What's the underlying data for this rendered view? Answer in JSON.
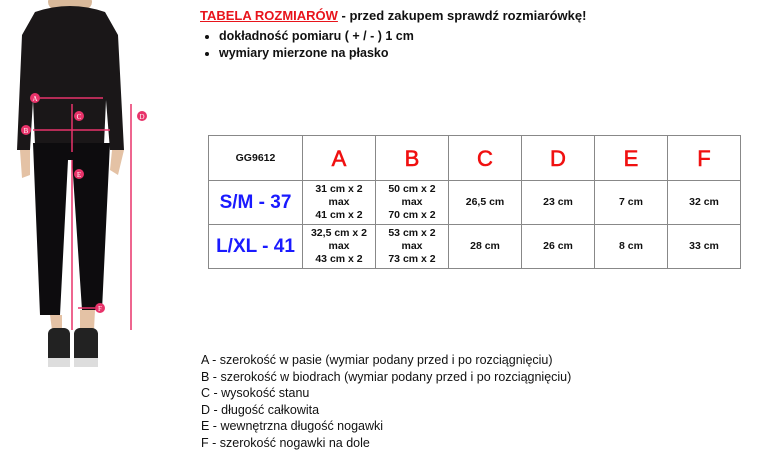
{
  "header": {
    "title": "TABELA ROZMIARÓW",
    "subtitle": " - przed zakupem sprawdź rozmiarówkę!"
  },
  "notes": [
    "dokładność pomiaru ( + / - ) 1 cm",
    "wymiary mierzone na płasko"
  ],
  "table": {
    "headers": [
      "GG9612",
      "A",
      "B",
      "C",
      "D",
      "E",
      "F"
    ],
    "rows": [
      {
        "size": "S/M - 37",
        "a": [
          "31 cm x 2",
          "max",
          "41 cm x 2"
        ],
        "b": [
          "50 cm x 2",
          "max",
          "70 cm x 2"
        ],
        "c": "26,5 cm",
        "d": "23 cm",
        "e": "7 cm",
        "f": "32 cm"
      },
      {
        "size": "L/XL - 41",
        "a": [
          "32,5 cm x 2",
          "max",
          "43 cm x 2"
        ],
        "b": [
          "53 cm x 2",
          "max",
          "73 cm x 2"
        ],
        "c": "28 cm",
        "d": "26 cm",
        "e": "8 cm",
        "f": "33 cm"
      }
    ]
  },
  "legend": [
    "A - szerokość w pasie (wymiar podany przed i po rozciągnięciu)",
    "B - szerokość w biodrach (wymiar podany przed i po rozciągnięciu)",
    "C - wysokość stanu",
    "D - długość całkowita",
    "E - wewnętrzna długość nogawki",
    "F - szerokość nogawki na dole"
  ],
  "figure": {
    "markers": [
      "A",
      "B",
      "C",
      "D",
      "E",
      "F"
    ],
    "marker_color": "#e8336a"
  }
}
